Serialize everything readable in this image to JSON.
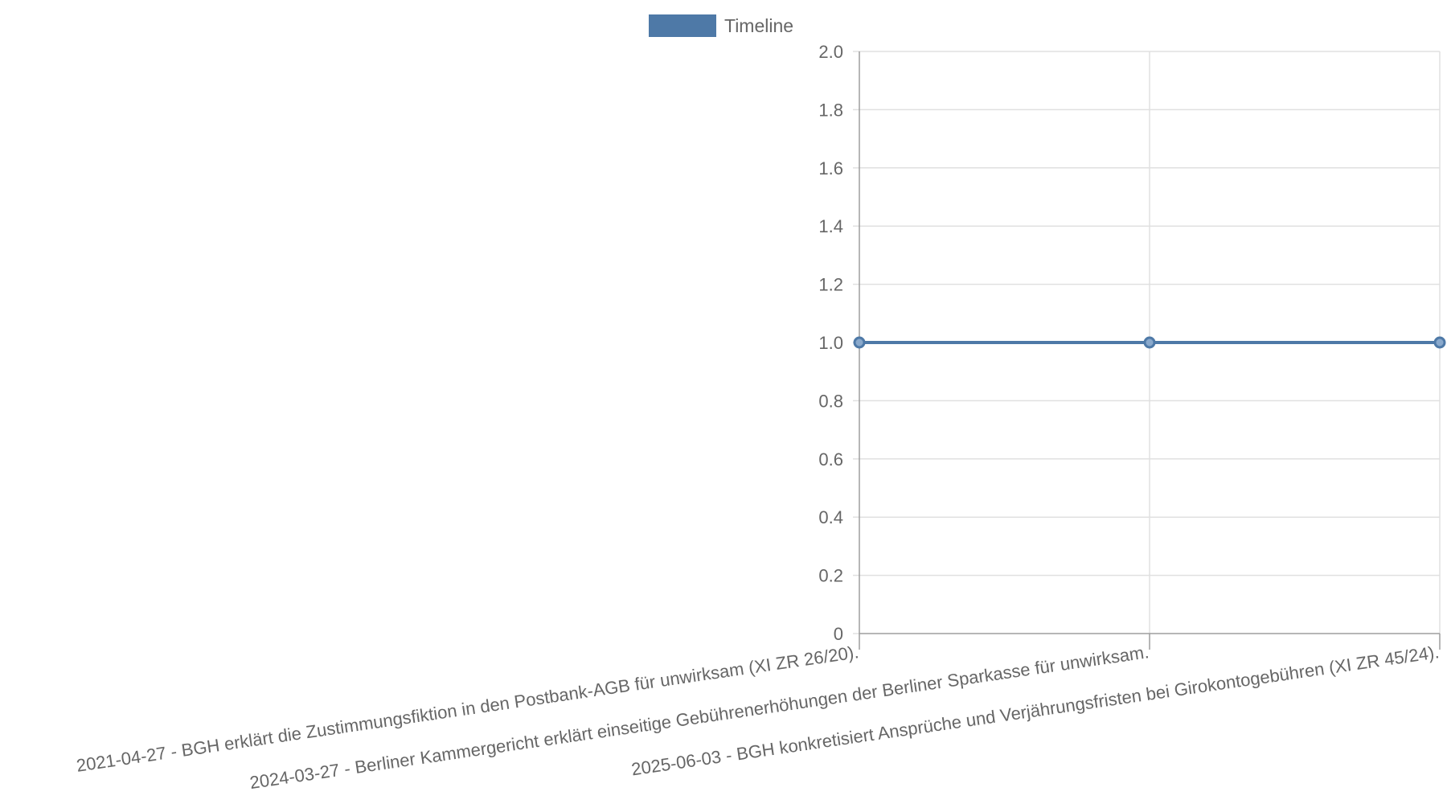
{
  "chart_data": {
    "type": "line",
    "title": "",
    "xlabel": "",
    "ylabel": "",
    "categories": [
      "2021-04-27 - BGH erklärt die Zustimmungsfiktion in den Postbank-AGB für unwirksam (XI ZR 26/20).",
      "2024-03-27 - Berliner Kammergericht erklärt einseitige Gebührenerhöhungen der Berliner Sparkasse für unwirksam.",
      "2025-06-03 - BGH konkretisiert Ansprüche und Verjährungsfristen bei Girokontogebühren (XI ZR 45/24)."
    ],
    "series": [
      {
        "name": "Timeline",
        "values": [
          1,
          1,
          1
        ],
        "color": "#4e79a7"
      }
    ],
    "ylim": [
      0,
      2
    ],
    "yticks": [
      "0",
      "0.2",
      "0.4",
      "0.6",
      "0.8",
      "1.0",
      "1.2",
      "1.4",
      "1.6",
      "1.8",
      "2.0"
    ],
    "grid": true,
    "legend_position": "top-center",
    "colors": {
      "grid": "#e0e0e0",
      "axis": "#9e9e9e",
      "text": "#666666"
    }
  }
}
